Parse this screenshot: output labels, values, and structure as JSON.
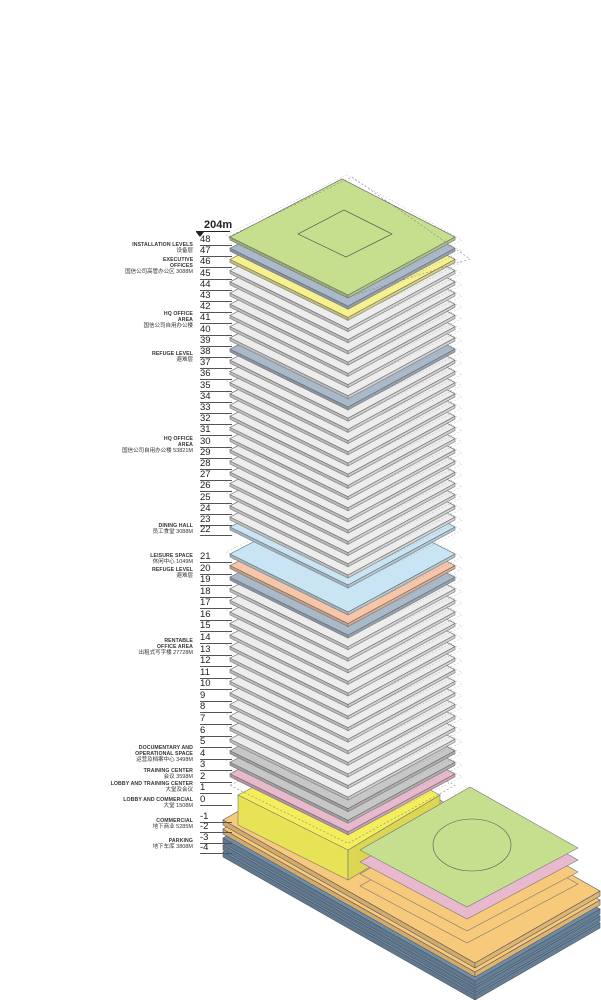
{
  "height_marker": "204m",
  "floors": [
    48,
    47,
    46,
    45,
    44,
    43,
    42,
    41,
    40,
    39,
    38,
    37,
    36,
    35,
    34,
    33,
    32,
    31,
    30,
    29,
    28,
    27,
    26,
    25,
    24,
    23,
    22,
    21,
    20,
    19,
    18,
    17,
    16,
    15,
    14,
    13,
    12,
    11,
    10,
    9,
    8,
    7,
    6,
    5,
    4,
    3,
    2,
    1,
    0,
    -1,
    -2,
    -3,
    -4
  ],
  "labels": [
    {
      "en": "INSTALLATION LEVELS",
      "cn": "设备层"
    },
    {
      "en": "EXECUTIVE OFFICES",
      "cn": "国信公司高管办公区  3088M"
    },
    {
      "en": "HQ OFFICE AREA",
      "cn": "国信公司自用办公楼"
    },
    {
      "en": "REFUGE LEVEL",
      "cn": "避难层"
    },
    {
      "en": "HQ OFFICE AREA",
      "cn": "国信公司自用办公楼  53821M"
    },
    {
      "en": "DINING HALL",
      "cn": "员工食堂  3088M"
    },
    {
      "en": "LEISURE SPACE",
      "cn": "休闲中心  1049M"
    },
    {
      "en": "REFUGE LEVEL",
      "cn": "避难层"
    },
    {
      "en": "RENTABLE OFFICE AREA",
      "cn": "出租式写字楼  27728M"
    },
    {
      "en": "DOCUMENTARY AND OPERATIONAL SPACE",
      "cn": "运营及档案中心  3498M"
    },
    {
      "en": "TRAINING CENTER",
      "cn": "会议  3598M"
    },
    {
      "en": "LOBBY AND TRAINING CENTER",
      "cn": "大堂及会议"
    },
    {
      "en": "LOBBY AND COMMERCIAL",
      "cn": "大堂  1508M"
    },
    {
      "en": "COMMERCIAL",
      "cn": "地下商业  5285M"
    },
    {
      "en": "PARKING",
      "cn": "地下车库  3808M"
    }
  ],
  "colors": {
    "roof_green": "#c6df8f",
    "installation_steel": "#a9b9c9",
    "executive_yellow": "#f6f08f",
    "office_gray": "#ededed",
    "dining_blue": "#c9e4f2",
    "refuge_peach": "#f7c5a7",
    "documentary_gray": "#c7c7c7",
    "training_pink": "#e8b8cc",
    "lobby_yellow": "#f4ee5c",
    "commercial_orange": "#f7c97b",
    "parking_blue": "#6e8da6"
  }
}
